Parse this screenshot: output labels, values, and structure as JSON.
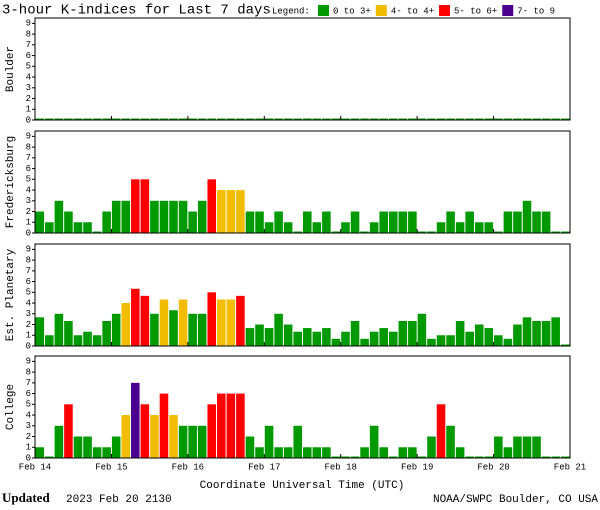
{
  "header": {
    "title": "3-hour K-indices for Last 7 days",
    "legend_label": "Legend:",
    "legend": [
      {
        "name": "0 to 3+",
        "color": "#009900"
      },
      {
        "name": "4- to 4+",
        "color": "#f2bd00"
      },
      {
        "name": "5- to 6+",
        "color": "#ff0000"
      },
      {
        "name": "7- to 9",
        "color": "#4b0090"
      }
    ]
  },
  "x_axis": {
    "label": "Coordinate Universal Time (UTC)",
    "ticks": [
      "Feb 14",
      "Feb 15",
      "Feb 16",
      "Feb 17",
      "Feb 18",
      "Feb 19",
      "Feb 20",
      "Feb 21"
    ]
  },
  "footer": {
    "updated_label": "Updated",
    "updated": "2023 Feb 20 2130",
    "source": "NOAA/SWPC Boulder, CO USA"
  },
  "chart_data": [
    {
      "type": "bar",
      "ylabel": "Boulder",
      "ylim": [
        0,
        9.5
      ],
      "yticks": [
        0,
        1,
        2,
        3,
        4,
        5,
        6,
        7,
        8,
        9
      ],
      "values": [
        0,
        0,
        0,
        0,
        0,
        0,
        0,
        0,
        0,
        0,
        0,
        0,
        0,
        0,
        0,
        0,
        0,
        0,
        0,
        0,
        0,
        0,
        0,
        0,
        0,
        0,
        0,
        0,
        0,
        0,
        0,
        0,
        0,
        0,
        0,
        0,
        0,
        0,
        0,
        0,
        0,
        0,
        0,
        0,
        0,
        0,
        0,
        0,
        0,
        0,
        0,
        0,
        0,
        0,
        0,
        0
      ],
      "colors": [
        "#009900",
        "#009900",
        "#009900",
        "#009900",
        "#009900",
        "#009900",
        "#009900",
        "#009900",
        "#009900",
        "#009900",
        "#009900",
        "#009900",
        "#009900",
        "#009900",
        "#009900",
        "#009900",
        "#009900",
        "#009900",
        "#009900",
        "#009900",
        "#009900",
        "#009900",
        "#009900",
        "#009900",
        "#009900",
        "#009900",
        "#009900",
        "#009900",
        "#009900",
        "#009900",
        "#009900",
        "#009900",
        "#009900",
        "#009900",
        "#009900",
        "#009900",
        "#009900",
        "#009900",
        "#009900",
        "#009900",
        "#009900",
        "#009900",
        "#009900",
        "#009900",
        "#009900",
        "#009900",
        "#009900",
        "#009900",
        "#009900",
        "#009900",
        "#009900",
        "#009900",
        "#009900",
        "#009900",
        "#009900",
        "#009900"
      ]
    },
    {
      "type": "bar",
      "ylabel": "Fredericksburg",
      "ylim": [
        0,
        9.5
      ],
      "yticks": [
        0,
        1,
        2,
        3,
        4,
        5,
        6,
        7,
        8,
        9
      ],
      "values": [
        2,
        1,
        3,
        2,
        1,
        1,
        0,
        2,
        3,
        3,
        5,
        5,
        3,
        3,
        3,
        3,
        2,
        3,
        5,
        4,
        4,
        4,
        2,
        2,
        1,
        2,
        1,
        0,
        2,
        1,
        2,
        0,
        1,
        2,
        0,
        1,
        2,
        2,
        2,
        2,
        0,
        0,
        1,
        2,
        1,
        2,
        1,
        1,
        0,
        2,
        2,
        3,
        2,
        2,
        0,
        0
      ],
      "colors": [
        "#009900",
        "#009900",
        "#009900",
        "#009900",
        "#009900",
        "#009900",
        "#009900",
        "#009900",
        "#009900",
        "#009900",
        "#ff0000",
        "#ff0000",
        "#009900",
        "#009900",
        "#009900",
        "#009900",
        "#009900",
        "#009900",
        "#ff0000",
        "#f2bd00",
        "#f2bd00",
        "#f2bd00",
        "#009900",
        "#009900",
        "#009900",
        "#009900",
        "#009900",
        "#009900",
        "#009900",
        "#009900",
        "#009900",
        "#009900",
        "#009900",
        "#009900",
        "#009900",
        "#009900",
        "#009900",
        "#009900",
        "#009900",
        "#009900",
        "#009900",
        "#009900",
        "#009900",
        "#009900",
        "#009900",
        "#009900",
        "#009900",
        "#009900",
        "#009900",
        "#009900",
        "#009900",
        "#009900",
        "#009900",
        "#009900",
        "#009900",
        "#009900"
      ]
    },
    {
      "type": "bar",
      "ylabel": "Est. Planetary",
      "ylim": [
        0,
        9.5
      ],
      "yticks": [
        0,
        1,
        2,
        3,
        4,
        5,
        6,
        7,
        8,
        9
      ],
      "values": [
        2.67,
        1,
        3,
        2.33,
        1,
        1.33,
        1,
        2.33,
        3,
        4,
        5.33,
        4.67,
        3,
        4.33,
        3.33,
        4.33,
        3,
        3,
        5,
        4.33,
        4.33,
        4.67,
        1.67,
        2,
        1.67,
        3,
        2,
        1.33,
        1.67,
        1.33,
        1.67,
        0.67,
        1.33,
        2.33,
        0.67,
        1.33,
        1.67,
        1.33,
        2.33,
        2.33,
        3,
        0.67,
        1,
        1,
        2.33,
        1.33,
        2,
        1.67,
        1,
        0.67,
        2,
        2.67,
        2.33,
        2.33,
        2.67,
        0
      ],
      "colors": [
        "#009900",
        "#009900",
        "#009900",
        "#009900",
        "#009900",
        "#009900",
        "#009900",
        "#009900",
        "#009900",
        "#f2bd00",
        "#ff0000",
        "#ff0000",
        "#009900",
        "#f2bd00",
        "#009900",
        "#f2bd00",
        "#009900",
        "#009900",
        "#ff0000",
        "#f2bd00",
        "#f2bd00",
        "#ff0000",
        "#009900",
        "#009900",
        "#009900",
        "#009900",
        "#009900",
        "#009900",
        "#009900",
        "#009900",
        "#009900",
        "#009900",
        "#009900",
        "#009900",
        "#009900",
        "#009900",
        "#009900",
        "#009900",
        "#009900",
        "#009900",
        "#009900",
        "#009900",
        "#009900",
        "#009900",
        "#009900",
        "#009900",
        "#009900",
        "#009900",
        "#009900",
        "#009900",
        "#009900",
        "#009900",
        "#009900",
        "#009900",
        "#009900",
        "#009900"
      ]
    },
    {
      "type": "bar",
      "ylabel": "College",
      "ylim": [
        0,
        9.5
      ],
      "yticks": [
        0,
        1,
        2,
        3,
        4,
        5,
        6,
        7,
        8,
        9
      ],
      "values": [
        1,
        0,
        3,
        5,
        2,
        2,
        1,
        1,
        2,
        4,
        7,
        5,
        4,
        6,
        4,
        3,
        3,
        3,
        5,
        6,
        6,
        6,
        2,
        1,
        3,
        1,
        1,
        3,
        1,
        1,
        1,
        0,
        0,
        0,
        1,
        3,
        1,
        0,
        1,
        1,
        0,
        2,
        5,
        3,
        1,
        0,
        0,
        0,
        2,
        1,
        2,
        2,
        2,
        0,
        0,
        0
      ],
      "colors": [
        "#009900",
        "#009900",
        "#009900",
        "#ff0000",
        "#009900",
        "#009900",
        "#009900",
        "#009900",
        "#009900",
        "#f2bd00",
        "#4b0090",
        "#ff0000",
        "#f2bd00",
        "#ff0000",
        "#f2bd00",
        "#009900",
        "#009900",
        "#009900",
        "#ff0000",
        "#ff0000",
        "#ff0000",
        "#ff0000",
        "#009900",
        "#009900",
        "#009900",
        "#009900",
        "#009900",
        "#009900",
        "#009900",
        "#009900",
        "#009900",
        "#009900",
        "#009900",
        "#009900",
        "#009900",
        "#009900",
        "#009900",
        "#009900",
        "#009900",
        "#009900",
        "#009900",
        "#009900",
        "#ff0000",
        "#009900",
        "#009900",
        "#009900",
        "#009900",
        "#009900",
        "#009900",
        "#009900",
        "#009900",
        "#009900",
        "#009900",
        "#009900",
        "#009900",
        "#009900"
      ]
    }
  ]
}
